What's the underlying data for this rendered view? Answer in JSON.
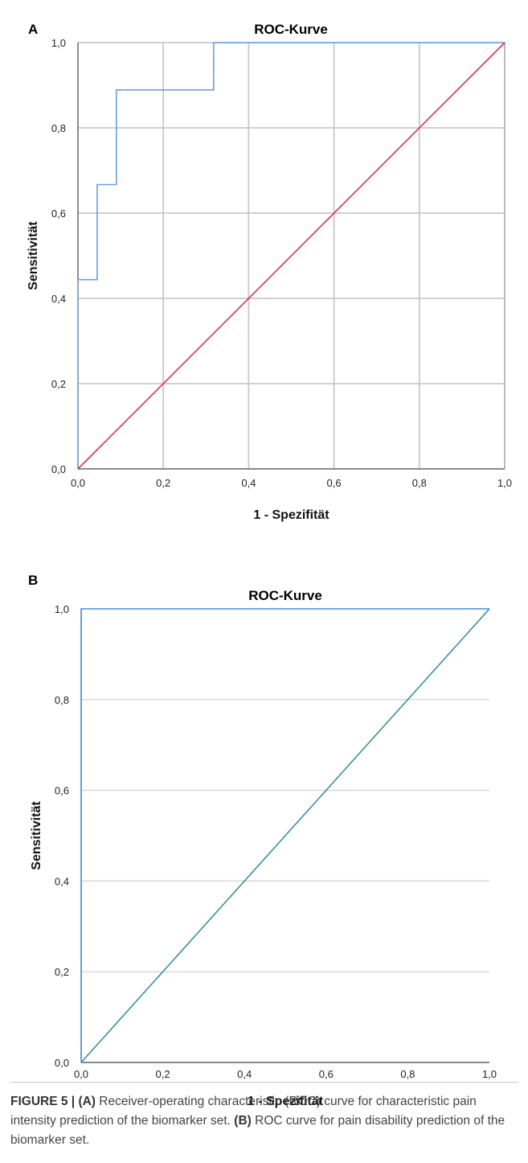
{
  "figure_caption": {
    "label": "FIGURE 5 |",
    "a_marker": "(A)",
    "a_text": " Receiver-operating characteristic (ROC) curve for characteristic pain intensity prediction of the biomarker set. ",
    "b_marker": "(B)",
    "b_text": " ROC curve for pain disability prediction of the biomarker set."
  },
  "chart_data": [
    {
      "panel": "A",
      "type": "line",
      "title": "ROC-Kurve",
      "xlabel": "1 - Spezifität",
      "ylabel": "Sensitivität",
      "xlim": [
        0,
        1
      ],
      "ylim": [
        0,
        1
      ],
      "x_ticks": [
        "0,0",
        "0,2",
        "0,4",
        "0,6",
        "0,8",
        "1,0"
      ],
      "y_ticks": [
        "0,0",
        "0,2",
        "0,4",
        "0,6",
        "0,8",
        "1,0"
      ],
      "grid": "both",
      "series": [
        {
          "x": [
            0,
            0,
            0.045,
            0.045,
            0.09,
            0.09,
            0.318,
            0.318,
            1.0
          ],
          "y": [
            0,
            0.444,
            0.444,
            0.667,
            0.667,
            0.889,
            0.889,
            1.0,
            1.0
          ],
          "color": "#6a9fdf"
        },
        {
          "x": [
            0,
            1
          ],
          "y": [
            0,
            1
          ],
          "color": "#e0304a"
        }
      ]
    },
    {
      "panel": "B",
      "type": "line",
      "title": "ROC-Kurve",
      "xlabel": "1 - Spezifität",
      "ylabel": "Sensitivität",
      "xlim": [
        0,
        1
      ],
      "ylim": [
        0,
        1
      ],
      "x_ticks": [
        "0,0",
        "0,2",
        "0,4",
        "0,6",
        "0,8",
        "1,0"
      ],
      "y_ticks": [
        "0,0",
        "0,2",
        "0,4",
        "0,6",
        "0,8",
        "1,0"
      ],
      "grid": "horizontal",
      "series": [
        {
          "x": [
            0,
            0,
            1
          ],
          "y": [
            0,
            1,
            1
          ],
          "color": "#4a90d9"
        },
        {
          "x": [
            0,
            1
          ],
          "y": [
            0,
            1
          ],
          "color": "#3a8f9a"
        }
      ]
    }
  ]
}
